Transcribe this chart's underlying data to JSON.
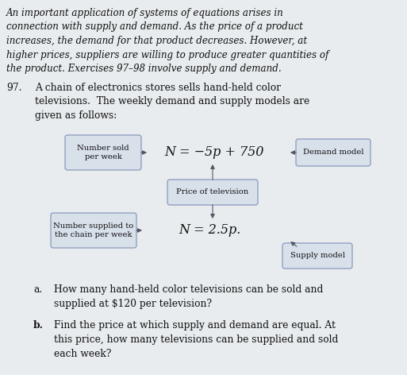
{
  "bg_color": "#e8ecef",
  "italic_intro_lines": [
    "An important application of systems of equations arises in",
    "connection with supply and demand. As the price of a product",
    "increases, the demand for that product decreases. However, at",
    "higher prices, suppliers are willing to produce greater quantities of",
    "the product. Exercises 97–98 involve supply and demand."
  ],
  "demand_eq": "N = −5p + 750",
  "supply_eq": "N = 2.5p.",
  "box_number_sold": "Number sold\nper week",
  "box_number_supplied": "Number supplied to\nthe chain per week",
  "box_price": "Price of television",
  "box_demand_model": "Demand model",
  "box_supply_model": "Supply model",
  "box_facecolor": "#d8e0ea",
  "box_edgecolor": "#8899bb",
  "part_a_label": "a.",
  "part_a_text": "How many hand-held color televisions can be sold and\nsupplied at $120 per television?",
  "part_b_label": "b.",
  "part_b_text": "Find the price at which supply and demand are equal. At\nthis price, how many televisions can be supplied and sold\neach week?"
}
